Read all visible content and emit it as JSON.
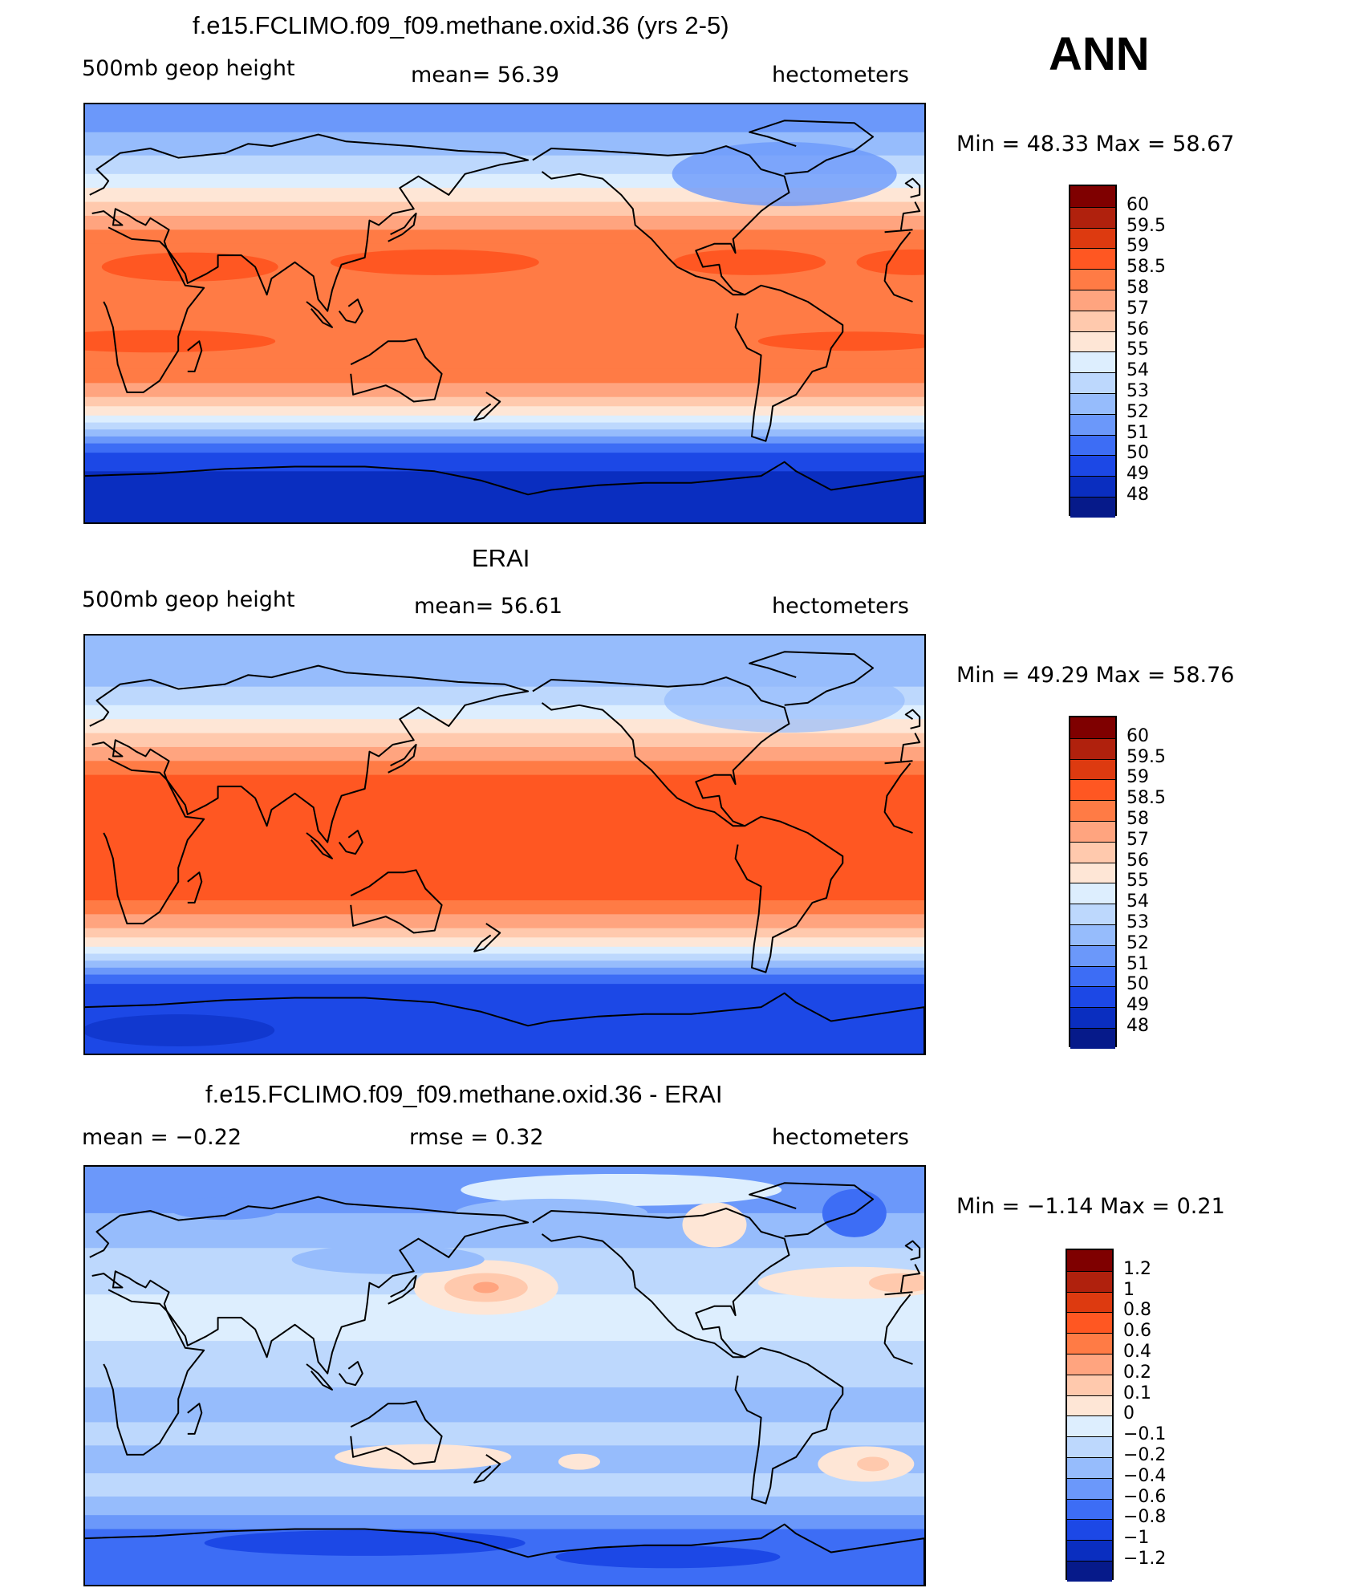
{
  "top_right_label": "ANN",
  "panels": [
    {
      "title": "f.e15.FCLIMO.f09_f09.methane.oxid.36 (yrs 2-5)",
      "left": "500mb  geop  height",
      "center": "mean=   56.39",
      "right": "hectometers",
      "minmax": "Min  =    48.33  Max  =    58.67",
      "colorbar_labels": [
        "60",
        "59.5",
        "59",
        "58.5",
        "58",
        "57",
        "56",
        "55",
        "54",
        "53",
        "52",
        "51",
        "50",
        "49",
        "48"
      ]
    },
    {
      "title": "ERAI",
      "left": "500mb  geop  height",
      "center": "mean=   56.61",
      "right": "hectometers",
      "minmax": "Min  =    49.29  Max  =    58.76",
      "colorbar_labels": [
        "60",
        "59.5",
        "59",
        "58.5",
        "58",
        "57",
        "56",
        "55",
        "54",
        "53",
        "52",
        "51",
        "50",
        "49",
        "48"
      ]
    },
    {
      "title": "f.e15.FCLIMO.f09_f09.methane.oxid.36 - ERAI",
      "left": "mean  =    −0.22",
      "center": "rmse  =     0.32",
      "right": "hectometers",
      "minmax": "Min  =    −1.14  Max  =      0.21",
      "colorbar_labels": [
        "1.2",
        "1",
        "0.8",
        "0.6",
        "0.4",
        "0.2",
        "0.1",
        "0",
        "−0.1",
        "−0.2",
        "−0.4",
        "−0.6",
        "−0.8",
        "−1",
        "−1.2"
      ]
    }
  ],
  "colors": {
    "scale_16": [
      "#7f0000",
      "#b0210d",
      "#dd3a10",
      "#ff5722",
      "#ff7b45",
      "#ffa47f",
      "#ffc9ad",
      "#fee6d6",
      "#ddeefe",
      "#bdd8fd",
      "#96bcfc",
      "#6b98fa",
      "#3d6df5",
      "#1c48e6",
      "#0a2ec0",
      "#061a8a"
    ]
  },
  "map_types": [
    "model",
    "obs",
    "diff"
  ]
}
